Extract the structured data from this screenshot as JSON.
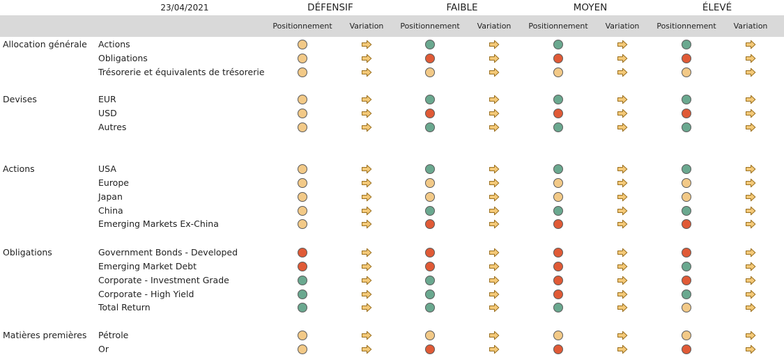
{
  "header": {
    "date": "23/04/2021",
    "profiles": [
      "DÉFENSIF",
      "FAIBLE",
      "MOYEN",
      "ÉLEVÉ"
    ],
    "col_positionnement": "Positionnement",
    "col_variation": "Variation"
  },
  "colors": {
    "neutral": "#f2c987",
    "positive": "#6aa88f",
    "negative": "#e05a36",
    "arrow_fill": "#f4c978",
    "arrow_stroke": "#9a6f1e"
  },
  "variation_icon": "arrow-right-icon",
  "groups": [
    {
      "name": "Allocation générale",
      "rows": [
        {
          "asset": "Actions",
          "positions": [
            "neutral",
            "positive",
            "positive",
            "positive"
          ],
          "variations": [
            "right",
            "right",
            "right",
            "right"
          ]
        },
        {
          "asset": "Obligations",
          "positions": [
            "neutral",
            "negative",
            "negative",
            "negative"
          ],
          "variations": [
            "right",
            "right",
            "right",
            "right"
          ]
        },
        {
          "asset": "Trésorerie et équivalents de trésorerie",
          "positions": [
            "neutral",
            "neutral",
            "neutral",
            "neutral"
          ],
          "variations": [
            "right",
            "right",
            "right",
            "right"
          ]
        }
      ]
    },
    {
      "name": "Devises",
      "rows": [
        {
          "asset": "EUR",
          "positions": [
            "neutral",
            "positive",
            "positive",
            "positive"
          ],
          "variations": [
            "right",
            "right",
            "right",
            "right"
          ]
        },
        {
          "asset": "USD",
          "positions": [
            "neutral",
            "negative",
            "negative",
            "negative"
          ],
          "variations": [
            "right",
            "right",
            "right",
            "right"
          ]
        },
        {
          "asset": "Autres",
          "positions": [
            "neutral",
            "positive",
            "positive",
            "positive"
          ],
          "variations": [
            "right",
            "right",
            "right",
            "right"
          ]
        }
      ]
    },
    {
      "name": "Actions",
      "rows": [
        {
          "asset": "USA",
          "positions": [
            "neutral",
            "positive",
            "positive",
            "positive"
          ],
          "variations": [
            "right",
            "right",
            "right",
            "right"
          ]
        },
        {
          "asset": "Europe",
          "positions": [
            "neutral",
            "neutral",
            "neutral",
            "neutral"
          ],
          "variations": [
            "right",
            "right",
            "right",
            "right"
          ]
        },
        {
          "asset": "Japan",
          "positions": [
            "neutral",
            "neutral",
            "neutral",
            "neutral"
          ],
          "variations": [
            "right",
            "right",
            "right",
            "right"
          ]
        },
        {
          "asset": "China",
          "positions": [
            "neutral",
            "positive",
            "positive",
            "positive"
          ],
          "variations": [
            "right",
            "right",
            "right",
            "right"
          ]
        },
        {
          "asset": "Emerging Markets Ex-China",
          "positions": [
            "neutral",
            "negative",
            "negative",
            "negative"
          ],
          "variations": [
            "right",
            "right",
            "right",
            "right"
          ]
        }
      ]
    },
    {
      "name": "Obligations",
      "rows": [
        {
          "asset": "Government Bonds - Developed",
          "positions": [
            "negative",
            "negative",
            "negative",
            "negative"
          ],
          "variations": [
            "right",
            "right",
            "right",
            "right"
          ]
        },
        {
          "asset": "Emerging Market Debt",
          "positions": [
            "negative",
            "negative",
            "negative",
            "positive"
          ],
          "variations": [
            "right",
            "right",
            "right",
            "right"
          ]
        },
        {
          "asset": "Corporate - Investment Grade",
          "positions": [
            "positive",
            "positive",
            "negative",
            "negative"
          ],
          "variations": [
            "right",
            "right",
            "right",
            "right"
          ]
        },
        {
          "asset": "Corporate - High Yield",
          "positions": [
            "positive",
            "positive",
            "negative",
            "positive"
          ],
          "variations": [
            "right",
            "right",
            "right",
            "right"
          ]
        },
        {
          "asset": "Total Return",
          "positions": [
            "positive",
            "positive",
            "positive",
            "neutral"
          ],
          "variations": [
            "right",
            "right",
            "right",
            "right"
          ]
        }
      ]
    },
    {
      "name": "Matières premières",
      "rows": [
        {
          "asset": "Pétrole",
          "positions": [
            "neutral",
            "neutral",
            "neutral",
            "neutral"
          ],
          "variations": [
            "right",
            "right",
            "right",
            "right"
          ]
        },
        {
          "asset": "Or",
          "positions": [
            "neutral",
            "negative",
            "negative",
            "negative"
          ],
          "variations": [
            "right",
            "right",
            "right",
            "right"
          ]
        }
      ]
    }
  ]
}
